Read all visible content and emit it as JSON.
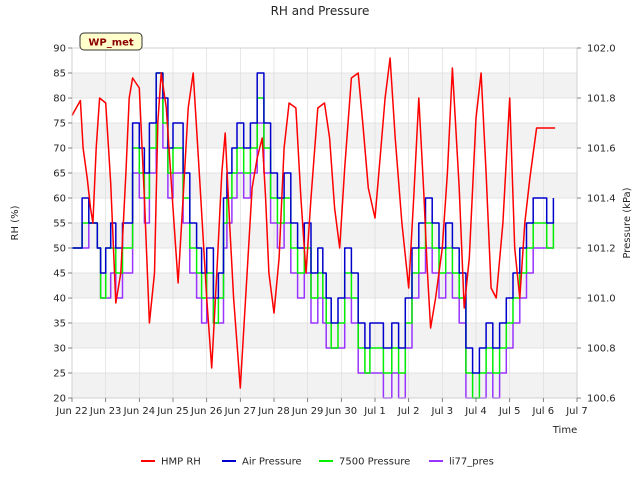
{
  "chart_data": {
    "type": "line",
    "title": "RH and Pressure",
    "xlabel": "Time",
    "ylabel_left": "RH (%)",
    "ylabel_right": "Pressure (kPa)",
    "badge": "WP_met",
    "ylim_left": [
      20,
      90
    ],
    "ylim_right": [
      100.6,
      102.0
    ],
    "xlim_days": [
      0,
      15
    ],
    "x_tick_labels": [
      "Jun 22",
      "Jun 23",
      "Jun 24",
      "Jun 25",
      "Jun 26",
      "Jun 27",
      "Jun 28",
      "Jun 29",
      "Jun 30",
      "Jul 1",
      "Jul 2",
      "Jul 3",
      "Jul 4",
      "Jul 5",
      "Jul 6",
      "Jul 7"
    ],
    "y_left_ticks": [
      "20",
      "25",
      "30",
      "35",
      "40",
      "45",
      "50",
      "55",
      "60",
      "65",
      "70",
      "75",
      "80",
      "85",
      "90"
    ],
    "y_right_ticks": [
      "100.6",
      "100.8",
      "101.0",
      "101.2",
      "101.4",
      "101.6",
      "101.8",
      "102.0"
    ],
    "grid": true,
    "legend_position": "bottom",
    "colors": {
      "HMP RH": "#ff0000",
      "Air Pressure": "#0000cc",
      "7500 Pressure": "#00ee00",
      "li77_pres": "#9933ff"
    },
    "series": [
      {
        "name": "HMP RH",
        "axis": "left",
        "x": [
          0.0,
          0.25,
          0.33,
          0.45,
          0.55,
          0.62,
          0.72,
          0.82,
          1.0,
          1.15,
          1.3,
          1.45,
          1.6,
          1.7,
          1.8,
          2.0,
          2.15,
          2.3,
          2.45,
          2.55,
          2.65,
          2.8,
          3.0,
          3.15,
          3.3,
          3.45,
          3.6,
          3.8,
          4.0,
          4.15,
          4.3,
          4.45,
          4.55,
          4.68,
          4.8,
          5.0,
          5.2,
          5.35,
          5.5,
          5.65,
          5.75,
          5.85,
          6.0,
          6.15,
          6.3,
          6.45,
          6.65,
          6.8,
          6.95,
          7.1,
          7.3,
          7.5,
          7.65,
          7.8,
          7.95,
          8.1,
          8.3,
          8.5,
          8.65,
          8.8,
          9.0,
          9.15,
          9.3,
          9.45,
          9.6,
          9.8,
          10.0,
          10.15,
          10.3,
          10.45,
          10.55,
          10.65,
          10.8,
          11.0,
          11.15,
          11.3,
          11.5,
          11.65,
          11.8,
          12.0,
          12.15,
          12.3,
          12.45,
          12.6,
          12.8,
          13.0,
          13.15,
          13.3,
          13.45,
          13.6,
          13.8,
          14.0,
          14.1,
          14.2,
          14.35
        ],
        "y": [
          76.5,
          79.5,
          70,
          64,
          58,
          55,
          70,
          80,
          79,
          63,
          39,
          45,
          65,
          80,
          84,
          82,
          60,
          35,
          45,
          75,
          85,
          78,
          58,
          43,
          60,
          78,
          85,
          63,
          40,
          26,
          45,
          65,
          73,
          55,
          40,
          22,
          45,
          62,
          68,
          72,
          60,
          45,
          37,
          48,
          70,
          79,
          78,
          60,
          45,
          60,
          78,
          79,
          72,
          58,
          50,
          66,
          84,
          85,
          74,
          62,
          56,
          68,
          80,
          88,
          72,
          55,
          42,
          60,
          80,
          61,
          46,
          34,
          40,
          50,
          65,
          86,
          62,
          38,
          48,
          76,
          85,
          65,
          42,
          40,
          55,
          80,
          50,
          40,
          55,
          64,
          74,
          74,
          74,
          74,
          74
        ]
      },
      {
        "name": "Air Pressure",
        "axis": "right",
        "x": [
          0.0,
          0.3,
          0.5,
          0.75,
          0.85,
          1.0,
          1.15,
          1.3,
          1.5,
          1.8,
          2.0,
          2.15,
          2.3,
          2.5,
          2.7,
          2.85,
          3.0,
          3.3,
          3.5,
          3.7,
          3.85,
          4.0,
          4.2,
          4.35,
          4.5,
          4.6,
          4.75,
          4.9,
          5.1,
          5.3,
          5.5,
          5.7,
          5.9,
          6.1,
          6.3,
          6.5,
          6.7,
          6.9,
          7.1,
          7.3,
          7.45,
          7.55,
          7.7,
          7.9,
          8.1,
          8.3,
          8.5,
          8.7,
          8.85,
          9.0,
          9.25,
          9.5,
          9.7,
          9.9,
          10.1,
          10.3,
          10.5,
          10.7,
          10.9,
          11.1,
          11.3,
          11.5,
          11.7,
          11.9,
          12.1,
          12.3,
          12.5,
          12.7,
          12.9,
          13.1,
          13.3,
          13.5,
          13.7,
          13.9,
          14.1,
          14.3
        ],
        "y": [
          101.2,
          101.4,
          101.3,
          101.2,
          101.1,
          101.2,
          101.3,
          101.2,
          101.3,
          101.7,
          101.6,
          101.5,
          101.7,
          101.9,
          101.8,
          101.6,
          101.7,
          101.5,
          101.3,
          101.2,
          101.1,
          101.2,
          101.0,
          101.1,
          101.4,
          101.5,
          101.6,
          101.7,
          101.6,
          101.7,
          101.9,
          101.7,
          101.5,
          101.4,
          101.5,
          101.3,
          101.2,
          101.3,
          101.1,
          101.2,
          101.1,
          101.0,
          100.9,
          101.0,
          101.2,
          101.1,
          100.9,
          100.8,
          100.9,
          100.9,
          100.8,
          100.9,
          100.8,
          101.0,
          101.2,
          101.3,
          101.4,
          101.3,
          101.2,
          101.3,
          101.2,
          101.1,
          100.8,
          100.7,
          100.8,
          100.9,
          100.8,
          100.9,
          101.0,
          101.1,
          101.2,
          101.3,
          101.4,
          101.4,
          101.3,
          101.4
        ]
      },
      {
        "name": "7500 Pressure",
        "axis": "right",
        "x": [
          0.0,
          0.3,
          0.5,
          0.75,
          0.85,
          1.0,
          1.15,
          1.3,
          1.5,
          1.8,
          2.0,
          2.15,
          2.3,
          2.5,
          2.7,
          2.85,
          3.0,
          3.3,
          3.5,
          3.7,
          3.85,
          4.0,
          4.2,
          4.35,
          4.5,
          4.6,
          4.75,
          4.9,
          5.1,
          5.3,
          5.5,
          5.7,
          5.9,
          6.1,
          6.3,
          6.5,
          6.7,
          6.9,
          7.1,
          7.3,
          7.45,
          7.55,
          7.7,
          7.9,
          8.1,
          8.3,
          8.5,
          8.7,
          8.85,
          9.0,
          9.25,
          9.5,
          9.7,
          9.9,
          10.1,
          10.3,
          10.5,
          10.7,
          10.9,
          11.1,
          11.3,
          11.5,
          11.7,
          11.9,
          12.1,
          12.3,
          12.5,
          12.7,
          12.9,
          13.1,
          13.3,
          13.5,
          13.7,
          13.9,
          14.1,
          14.3
        ],
        "y": [
          101.2,
          101.3,
          101.3,
          101.2,
          101.0,
          101.2,
          101.2,
          101.1,
          101.2,
          101.6,
          101.5,
          101.4,
          101.6,
          101.9,
          101.7,
          101.5,
          101.6,
          101.4,
          101.2,
          101.1,
          101.0,
          101.1,
          100.9,
          101.0,
          101.3,
          101.4,
          101.5,
          101.6,
          101.5,
          101.6,
          101.8,
          101.6,
          101.4,
          101.3,
          101.4,
          101.2,
          101.1,
          101.2,
          101.0,
          101.1,
          101.0,
          100.9,
          100.8,
          100.9,
          101.1,
          101.0,
          100.8,
          100.7,
          100.8,
          100.8,
          100.7,
          100.8,
          100.7,
          100.9,
          101.1,
          101.2,
          101.3,
          101.2,
          101.1,
          101.2,
          101.1,
          101.0,
          100.7,
          100.6,
          100.7,
          100.8,
          100.7,
          100.8,
          100.9,
          101.0,
          101.1,
          101.2,
          101.3,
          101.3,
          101.2,
          101.3
        ]
      },
      {
        "name": "li77_pres",
        "axis": "right",
        "x": [
          0.0,
          0.3,
          0.5,
          0.75,
          0.85,
          1.0,
          1.15,
          1.3,
          1.5,
          1.8,
          2.0,
          2.15,
          2.3,
          2.5,
          2.7,
          2.85,
          3.0,
          3.3,
          3.5,
          3.7,
          3.85,
          4.0,
          4.2,
          4.35,
          4.5,
          4.6,
          4.75,
          4.9,
          5.1,
          5.3,
          5.5,
          5.7,
          5.9,
          6.1,
          6.3,
          6.5,
          6.7,
          6.9,
          7.1,
          7.3,
          7.45,
          7.55,
          7.7,
          7.9,
          8.1,
          8.3,
          8.5,
          8.7,
          8.85,
          9.0,
          9.25,
          9.5,
          9.7,
          9.9,
          10.1,
          10.3,
          10.5,
          10.7,
          10.9,
          11.1,
          11.3,
          11.5,
          11.7,
          11.9,
          12.1,
          12.3,
          12.5,
          12.7,
          12.9,
          13.1,
          13.3,
          13.5,
          13.7,
          13.9,
          14.1,
          14.3
        ],
        "y": [
          101.2,
          101.2,
          101.3,
          101.2,
          101.0,
          101.0,
          101.1,
          101.0,
          101.1,
          101.5,
          101.4,
          101.3,
          101.5,
          101.8,
          101.6,
          101.4,
          101.5,
          101.3,
          101.1,
          101.0,
          100.9,
          101.0,
          100.9,
          100.9,
          101.2,
          101.3,
          101.4,
          101.5,
          101.4,
          101.5,
          101.7,
          101.5,
          101.3,
          101.2,
          101.3,
          101.1,
          101.0,
          101.1,
          100.9,
          101.0,
          100.9,
          100.8,
          100.8,
          100.8,
          101.0,
          100.9,
          100.7,
          100.7,
          100.7,
          100.7,
          100.6,
          100.7,
          100.6,
          100.8,
          101.0,
          101.1,
          101.2,
          101.1,
          101.0,
          101.1,
          101.0,
          100.9,
          100.6,
          100.6,
          100.6,
          100.7,
          100.6,
          100.7,
          100.8,
          100.9,
          101.0,
          101.1,
          101.2,
          101.2,
          101.2,
          101.2
        ]
      }
    ]
  }
}
